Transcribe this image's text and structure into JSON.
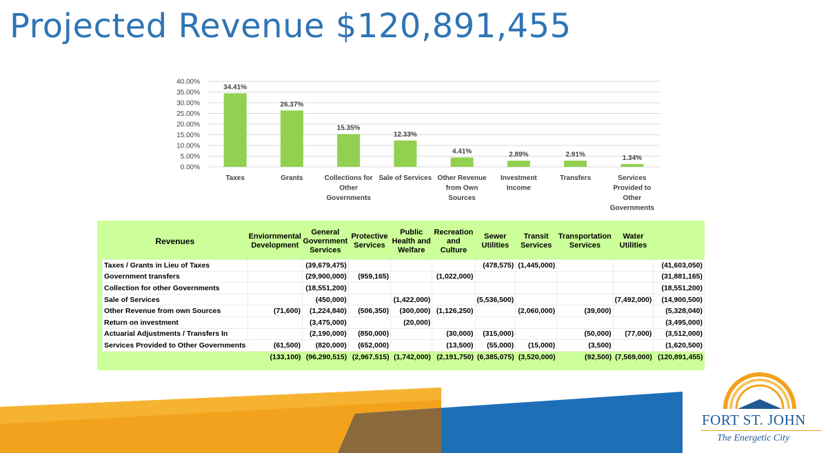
{
  "title": "Projected Revenue $120,891,455",
  "chart_data": {
    "type": "bar",
    "categories": [
      "Taxes",
      "Grants",
      "Collections for Other Governments",
      "Sale of Services",
      "Other Revenue from Own Sources",
      "Investment Income",
      "Transfers",
      "Services Provided to Other Governments"
    ],
    "category_lines": [
      [
        "Taxes"
      ],
      [
        "Grants"
      ],
      [
        "Collections for",
        "Other",
        "Governments"
      ],
      [
        "Sale of Services"
      ],
      [
        "Other Revenue",
        "from Own",
        "Sources"
      ],
      [
        "Investment",
        "Income"
      ],
      [
        "Transfers"
      ],
      [
        "Services",
        "Provided to",
        "Other",
        "Governments"
      ]
    ],
    "values": [
      34.41,
      26.37,
      15.35,
      12.33,
      4.41,
      2.89,
      2.91,
      1.34
    ],
    "data_labels": [
      "34.41%",
      "26.37%",
      "15.35%",
      "12.33%",
      "4.41%",
      "2.89%",
      "2.91%",
      "1.34%"
    ],
    "y_ticks": [
      "0.00%",
      "5.00%",
      "10.00%",
      "15.00%",
      "20.00%",
      "25.00%",
      "30.00%",
      "35.00%",
      "40.00%"
    ],
    "ylim": [
      0,
      40
    ],
    "grid": true,
    "bar_color": "#92d050",
    "title": "",
    "xlabel": "",
    "ylabel": ""
  },
  "table": {
    "row_header": "Revenues",
    "columns": [
      [
        "Enviornmental",
        "Development"
      ],
      [
        "General",
        "Government",
        "Services"
      ],
      [
        "Protective",
        "Services"
      ],
      [
        "Public",
        "Health and",
        "Welfare"
      ],
      [
        "Recreation",
        "and Culture"
      ],
      [
        "Sewer",
        "Utilities"
      ],
      [
        "Transit",
        "Services"
      ],
      [
        "Transportation",
        "Services"
      ],
      [
        "Water",
        "Utilities"
      ],
      []
    ],
    "rows": [
      {
        "label": "Taxes / Grants in Lieu of Taxes",
        "cells": [
          "",
          "(39,679,475)",
          "",
          "",
          "",
          "(478,575)",
          "(1,445,000)",
          "",
          "",
          "(41,603,050)"
        ]
      },
      {
        "label": "Government transfers",
        "cells": [
          "",
          "(29,900,000)",
          "(959,165)",
          "",
          "(1,022,000)",
          "",
          "",
          "",
          "",
          "(31,881,165)"
        ]
      },
      {
        "label": "Collection for other Governments",
        "cells": [
          "",
          "(18,551,200)",
          "",
          "",
          "",
          "",
          "",
          "",
          "",
          "(18,551,200)"
        ]
      },
      {
        "label": "Sale of Services",
        "cells": [
          "",
          "(450,000)",
          "",
          "(1,422,000)",
          "",
          "(5,536,500)",
          "",
          "",
          "(7,492,000)",
          "(14,900,500)"
        ]
      },
      {
        "label": "Other Revenue from own Sources",
        "cells": [
          "(71,600)",
          "(1,224,840)",
          "(506,350)",
          "(300,000)",
          "(1,126,250)",
          "",
          "(2,060,000)",
          "(39,000)",
          "",
          "(5,328,040)"
        ]
      },
      {
        "label": "Return on investment",
        "cells": [
          "",
          "(3,475,000)",
          "",
          "(20,000)",
          "",
          "",
          "",
          "",
          "",
          "(3,495,000)"
        ]
      },
      {
        "label": "Actuarial Adjustments / Transfers In",
        "cells": [
          "",
          "(2,190,000)",
          "(850,000)",
          "",
          "(30,000)",
          "(315,000)",
          "",
          "(50,000)",
          "(77,000)",
          "(3,512,000)"
        ]
      },
      {
        "label": "Services Provided to Other Governments",
        "cells": [
          "(61,500)",
          "(820,000)",
          "(652,000)",
          "",
          "(13,500)",
          "(55,000)",
          "(15,000)",
          "(3,500)",
          "",
          "(1,620,500)"
        ]
      }
    ],
    "totals": [
      "(133,100)",
      "(96,290,515)",
      "(2,967,515)",
      "(1,742,000)",
      "(2,191,750)",
      "(6,385,075)",
      "(3,520,000)",
      "(92,500)",
      "(7,569,000)",
      "(120,891,455)"
    ]
  },
  "logo": {
    "name": "FORT ST. JOHN",
    "tagline": "The Energetic City"
  },
  "colors": {
    "title": "#2e74b5",
    "bar": "#92d050",
    "table_bg": "#ccff99",
    "band_orange": "#f3a21d",
    "band_blue": "#1f6fb8",
    "logo_blue": "#1f5a96"
  }
}
